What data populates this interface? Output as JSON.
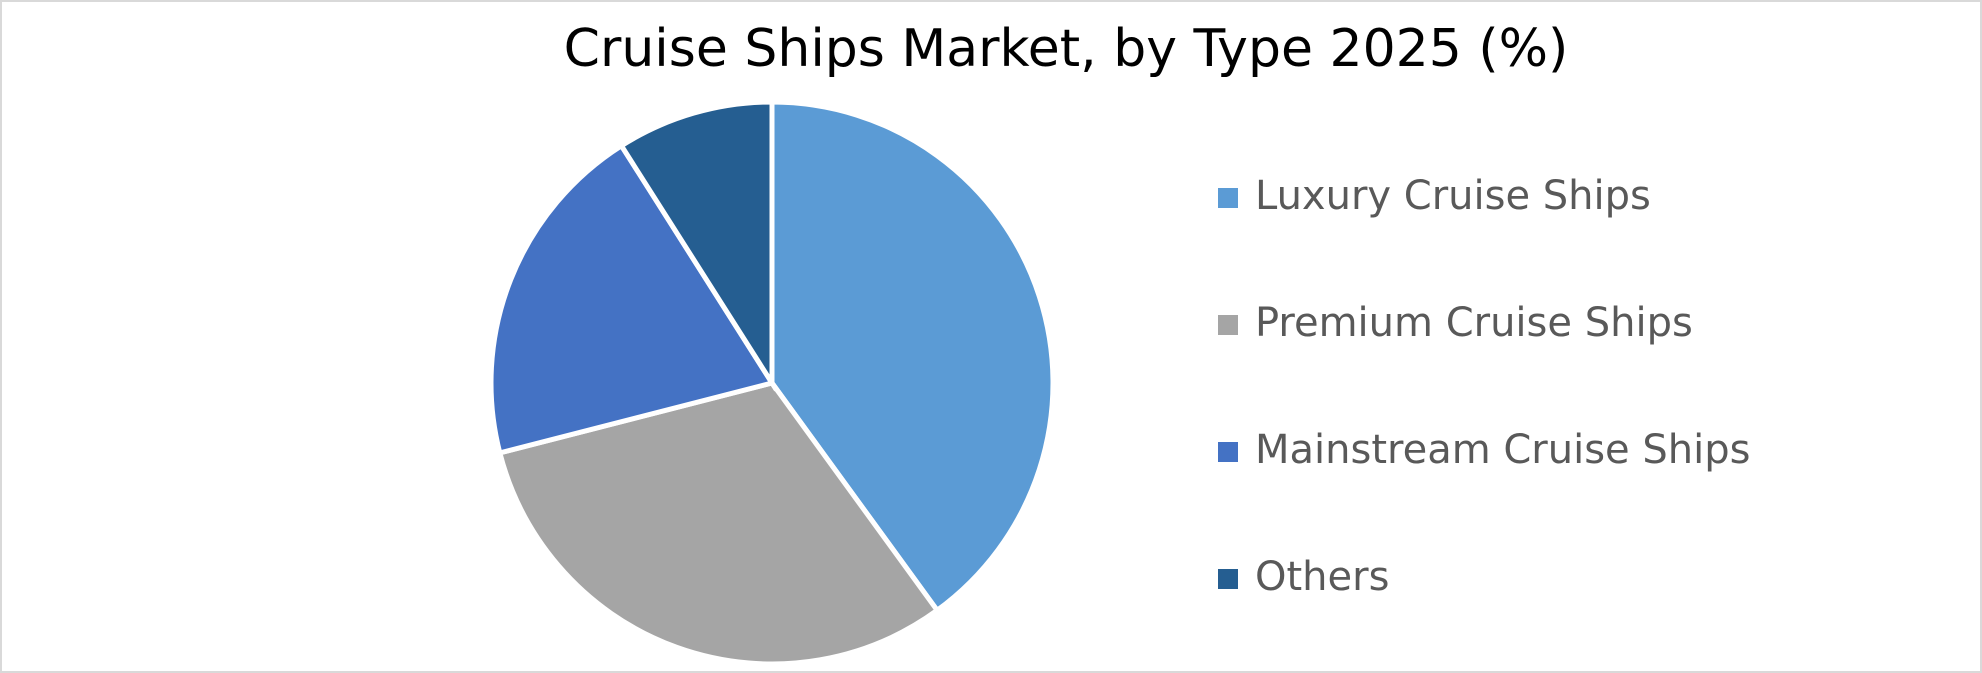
{
  "chart_data": {
    "type": "pie",
    "title": "Cruise Ships Market, by Type 2025 (%)",
    "categories": [
      "Luxury Cruise Ships",
      "Premium Cruise Ships",
      "Mainstream Cruise Ships",
      "Others"
    ],
    "values": [
      40,
      31,
      20,
      9
    ],
    "colors": [
      "#5b9bd5",
      "#a5a5a5",
      "#4472c4",
      "#255e91"
    ],
    "legend": "right"
  }
}
